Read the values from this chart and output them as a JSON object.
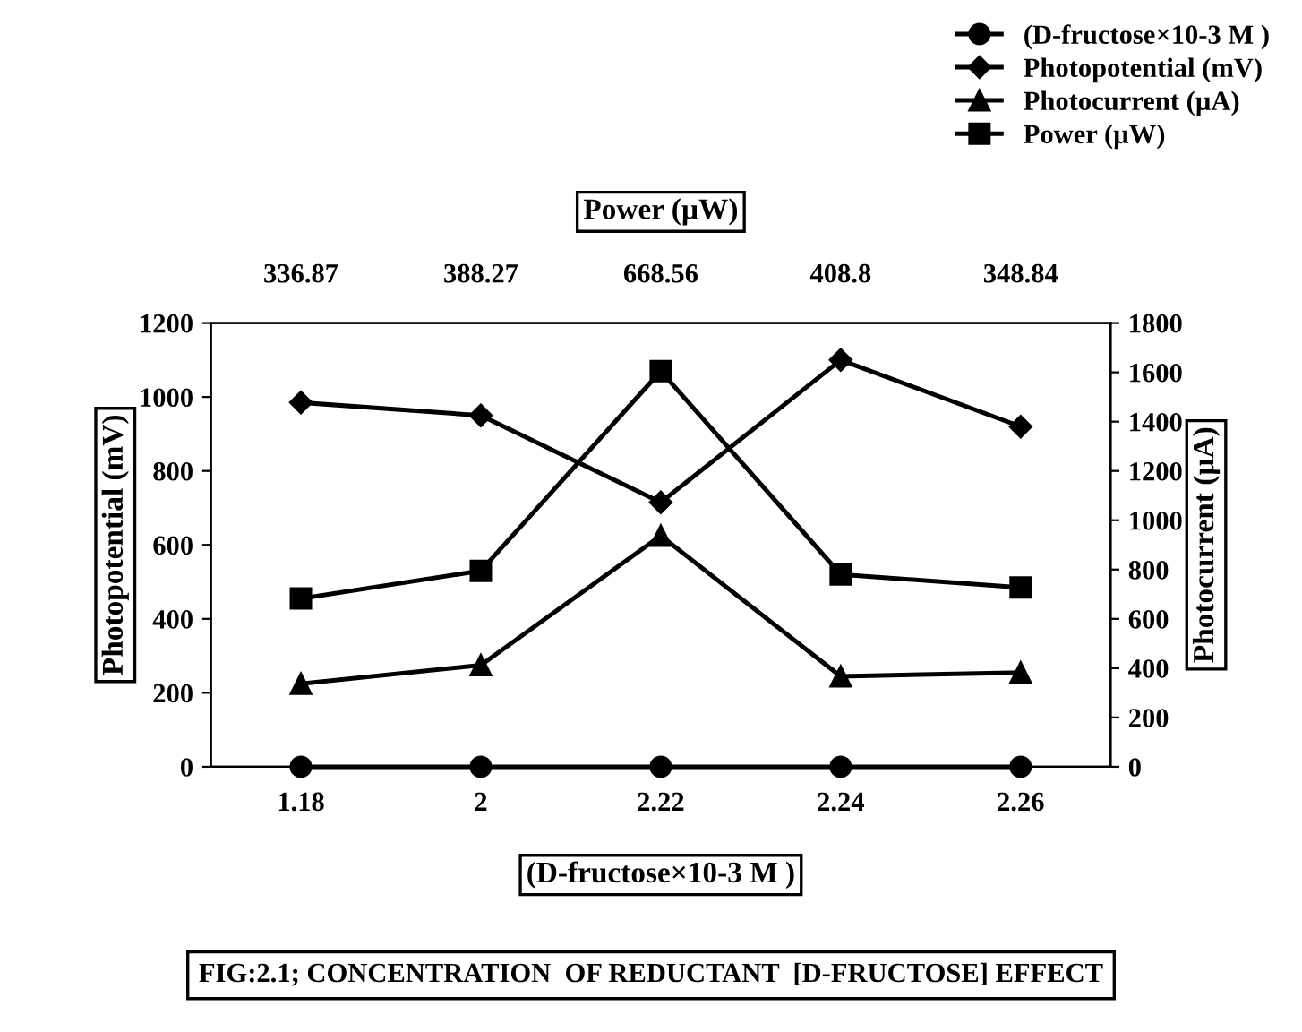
{
  "chart_data": {
    "type": "line",
    "title": "FIG:2.1; CONCENTRATION  OF REDUCTANT  [D-FRUCTOSE] EFFECT",
    "xlabel": "(D-fructose×10-3 M )",
    "ylabel": "Photopotential (mV)",
    "y2label": "Photocurrent (µA)",
    "x2label": "Power (µW)",
    "categories": [
      "1.18",
      "2",
      "2.22",
      "2.24",
      "2.26"
    ],
    "annotations": [
      "336.87",
      "388.27",
      "668.56",
      "408.8",
      "348.84"
    ],
    "series": [
      {
        "name": "(D-fructose×10-3 M )",
        "color": "#000000",
        "marker": "circle",
        "values": [
          0,
          0,
          0,
          0,
          0
        ]
      },
      {
        "name": "Photopotential (mV)",
        "color": "#000000",
        "marker": "diamond",
        "values": [
          985,
          950,
          715,
          1100,
          920
        ]
      },
      {
        "name": "Photocurrent (µA)",
        "color": "#000000",
        "marker": "triangle",
        "axis": "y2",
        "values": [
          337,
          412,
          937,
          367,
          382
        ]
      },
      {
        "name": "Power (µW)",
        "color": "#000000",
        "marker": "square",
        "values": [
          455,
          530,
          1070,
          520,
          485
        ]
      }
    ],
    "ylim": [
      0,
      1200
    ],
    "yticks": [
      0,
      200,
      400,
      600,
      800,
      1000,
      1200
    ],
    "y2lim": [
      0,
      1800
    ],
    "y2ticks": [
      0,
      200,
      400,
      600,
      800,
      1000,
      1200,
      1400,
      1600,
      1800
    ],
    "grid": false,
    "legend": "top right",
    "line_style": "solid"
  }
}
